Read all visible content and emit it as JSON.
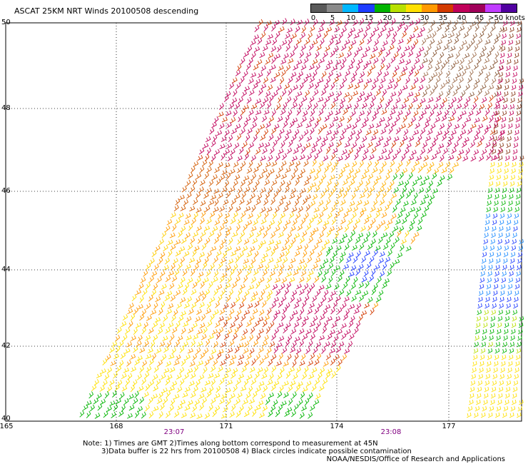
{
  "title": "ASCAT 25KM NRT Winds 20100508 descending",
  "legend": {
    "labels": [
      "0",
      "5",
      "10",
      "15",
      "20",
      "25",
      "30",
      "35",
      "40",
      "45",
      ">50 knots"
    ],
    "colors": [
      "#5a5a5a",
      "#8a8a8a",
      "#00b8ff",
      "#1e3cff",
      "#00b400",
      "#b8e000",
      "#ffe000",
      "#ff9900",
      "#d23a00",
      "#c0005a",
      "#a0005a",
      "#c03cff",
      "#5000a0"
    ]
  },
  "axes": {
    "lat_labels": [
      "50",
      "48",
      "46",
      "44",
      "42",
      "40"
    ],
    "lon_labels": [
      "165",
      "168",
      "171",
      "174",
      "177"
    ],
    "time_labels": [
      "23:07",
      "23:08"
    ]
  },
  "notes": {
    "line1": "Note: 1) Times are GMT 2)Times along bottom correspond to measurement at 45N",
    "line2": "3)Data buffer is 22 hrs from 20100508 4) Black circles indicate possible contamination",
    "credit": "NOAA/NESDIS/Office of Research and Applications"
  }
}
